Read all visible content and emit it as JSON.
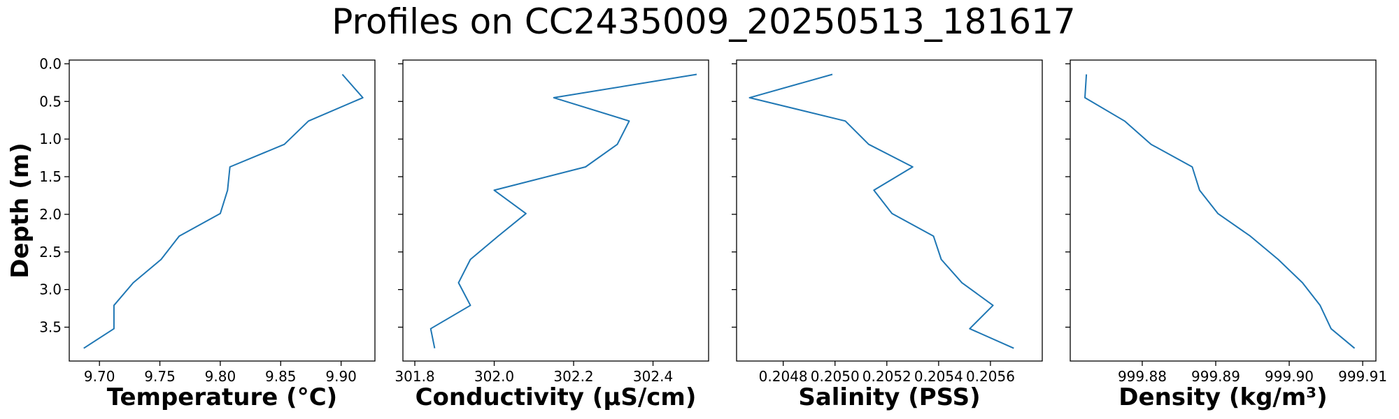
{
  "title": "Profiles on CC2435009_20250513_181617",
  "colors": {
    "series": "#1f77b4"
  },
  "chart_data": [
    {
      "type": "line",
      "orientation": "profile",
      "xlabel": "Temperature (°C)",
      "ylabel": "Depth (m)",
      "xlim": [
        9.675,
        9.928
      ],
      "ylim": [
        3.95,
        -0.05
      ],
      "xticks": [
        9.7,
        9.75,
        9.8,
        9.85,
        9.9
      ],
      "xtick_labels": [
        "9.70",
        "9.75",
        "9.80",
        "9.85",
        "9.90"
      ],
      "yticks": [
        0.0,
        0.5,
        1.0,
        1.5,
        2.0,
        2.5,
        3.0,
        3.5
      ],
      "ytick_labels": [
        "0.0",
        "0.5",
        "1.0",
        "1.5",
        "2.0",
        "2.5",
        "3.0",
        "3.5"
      ],
      "depth": [
        0.14,
        0.45,
        0.76,
        1.07,
        1.37,
        1.68,
        1.99,
        2.29,
        2.6,
        2.91,
        3.21,
        3.52,
        3.78
      ],
      "values": [
        9.901,
        9.918,
        9.873,
        9.853,
        9.808,
        9.806,
        9.8,
        9.766,
        9.751,
        9.728,
        9.712,
        9.712,
        9.687
      ]
    },
    {
      "type": "line",
      "orientation": "profile",
      "xlabel": "Conductivity (µS/cm)",
      "xlim": [
        301.77,
        302.54
      ],
      "ylim": [
        3.95,
        -0.05
      ],
      "xticks": [
        301.8,
        302.0,
        302.2,
        302.4
      ],
      "xtick_labels": [
        "301.8",
        "302.0",
        "302.2",
        "302.4"
      ],
      "depth": [
        0.14,
        0.45,
        0.76,
        1.07,
        1.37,
        1.68,
        1.99,
        2.29,
        2.6,
        2.91,
        3.21,
        3.52,
        3.78
      ],
      "values": [
        302.51,
        302.15,
        302.34,
        302.31,
        302.23,
        302.0,
        302.08,
        302.01,
        301.94,
        301.91,
        301.94,
        301.84,
        301.85
      ]
    },
    {
      "type": "line",
      "orientation": "profile",
      "xlabel": "Salinity (PSS)",
      "xlim": [
        0.20462,
        0.2058
      ],
      "ylim": [
        3.95,
        -0.05
      ],
      "xticks": [
        0.2048,
        0.205,
        0.2052,
        0.2054,
        0.2056
      ],
      "xtick_labels": [
        "0.2048",
        "0.2050",
        "0.2052",
        "0.2054",
        "0.2056"
      ],
      "depth": [
        0.14,
        0.45,
        0.76,
        1.07,
        1.37,
        1.68,
        1.99,
        2.29,
        2.6,
        2.91,
        3.21,
        3.52,
        3.78
      ],
      "values": [
        0.20499,
        0.20467,
        0.20504,
        0.20513,
        0.2053,
        0.20515,
        0.20522,
        0.20538,
        0.20541,
        0.20549,
        0.20561,
        0.20552,
        0.20569
      ]
    },
    {
      "type": "line",
      "orientation": "profile",
      "xlabel": "Density (kg/m³)",
      "xlim": [
        999.8702,
        999.9118
      ],
      "ylim": [
        3.95,
        -0.05
      ],
      "xticks": [
        999.88,
        999.89,
        999.9,
        999.91
      ],
      "xtick_labels": [
        "999.88",
        "999.89",
        "999.90",
        "999.91"
      ],
      "depth": [
        0.14,
        0.45,
        0.76,
        1.07,
        1.37,
        1.68,
        1.99,
        2.29,
        2.6,
        2.91,
        3.21,
        3.52,
        3.78
      ],
      "values": [
        999.8724,
        999.8722,
        999.8776,
        999.8812,
        999.8868,
        999.8878,
        999.8903,
        999.8947,
        999.8985,
        999.9018,
        999.9042,
        999.9057,
        999.9089
      ]
    }
  ]
}
